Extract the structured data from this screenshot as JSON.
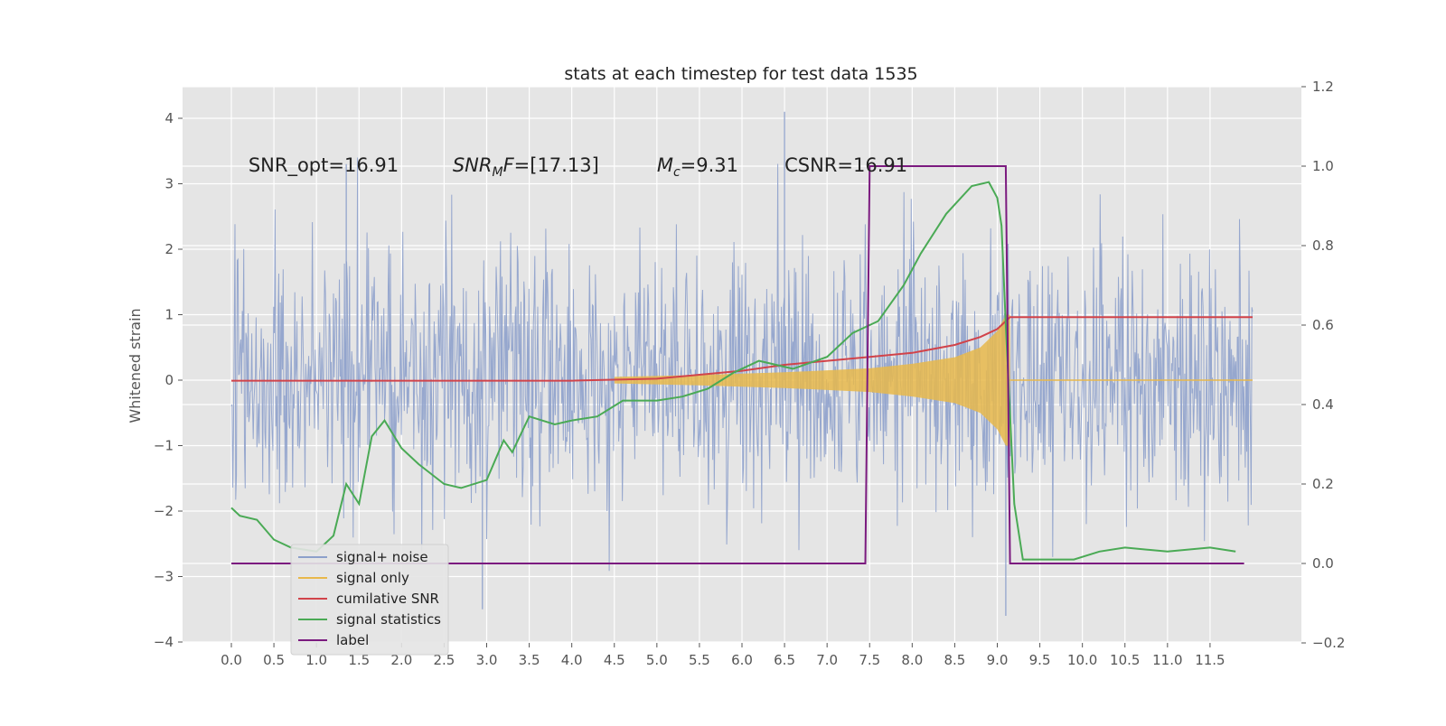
{
  "chart_data": {
    "type": "line",
    "title": "stats at each timestep for test data 1535",
    "ylabel": "Whitened strain",
    "xlabel": "",
    "xlim": [
      -0.5,
      12.4
    ],
    "ylim": [
      -4,
      4.4
    ],
    "y2lim": [
      -0.2,
      1.2
    ],
    "grid": true,
    "legend_position": "lower-left",
    "x_ticks": [
      "0.0",
      "0.5",
      "1.0",
      "1.5",
      "2.0",
      "2.5",
      "3.0",
      "3.5",
      "4.0",
      "4.5",
      "5.0",
      "5.5",
      "6.0",
      "6.5",
      "7.0",
      "7.5",
      "8.0",
      "8.5",
      "9.0",
      "9.5",
      "10.0",
      "10.5",
      "11.0",
      "11.5"
    ],
    "y_ticks": [
      "−4",
      "−3",
      "−2",
      "−1",
      "0",
      "1",
      "2",
      "3",
      "4"
    ],
    "y2_ticks": [
      "−0.2",
      "0.0",
      "0.2",
      "0.4",
      "0.6",
      "0.8",
      "1.0",
      "1.2"
    ],
    "annotations": [
      {
        "text": "SNR_opt=16.91",
        "x": 0.2,
        "y": 3.3
      },
      {
        "text": "SNR_MF=[17.13]",
        "x": 2.6,
        "y": 3.3
      },
      {
        "text": "M_c=9.31",
        "x": 5.0,
        "y": 3.3
      },
      {
        "text": "CSNR=16.91",
        "x": 6.5,
        "y": 3.3
      }
    ],
    "series": [
      {
        "name": "signal+ noise",
        "color": "#8da0cb",
        "axis": "left",
        "kind": "noise",
        "t_range": [
          0,
          12.0
        ],
        "amplitude_rms": 1.0,
        "envelope_approx": [
          -2.6,
          2.6
        ],
        "peak_max": 4.1,
        "peak_min": -3.6
      },
      {
        "name": "signal only",
        "color": "#e8b84b",
        "axis": "left",
        "kind": "chirp",
        "start": 4.5,
        "merger": 9.15,
        "peak": 1.0,
        "envelope": {
          "x": [
            4.5,
            5.5,
            6.5,
            7.5,
            8.0,
            8.5,
            8.8,
            9.0,
            9.1,
            9.15
          ],
          "amp": [
            0.05,
            0.08,
            0.12,
            0.18,
            0.25,
            0.35,
            0.5,
            0.75,
            1.0,
            1.0
          ]
        }
      },
      {
        "name": "cumilative SNR",
        "color": "#d1434a",
        "axis": "right",
        "x": [
          0,
          1,
          2,
          3,
          4,
          5,
          5.5,
          6,
          6.5,
          7,
          7.5,
          8,
          8.5,
          8.8,
          9.0,
          9.1,
          9.15,
          10,
          11,
          12
        ],
        "values": [
          0.46,
          0.46,
          0.46,
          0.46,
          0.46,
          0.465,
          0.475,
          0.485,
          0.5,
          0.51,
          0.52,
          0.53,
          0.55,
          0.57,
          0.59,
          0.61,
          0.62,
          0.62,
          0.62,
          0.62
        ]
      },
      {
        "name": "signal statistics",
        "color": "#4aaa55",
        "axis": "right",
        "x": [
          0.0,
          0.1,
          0.3,
          0.5,
          0.7,
          1.0,
          1.2,
          1.35,
          1.5,
          1.65,
          1.8,
          2.0,
          2.2,
          2.5,
          2.7,
          3.0,
          3.2,
          3.3,
          3.5,
          3.8,
          4.0,
          4.3,
          4.6,
          5.0,
          5.3,
          5.6,
          5.9,
          6.2,
          6.6,
          7.0,
          7.3,
          7.6,
          7.9,
          8.1,
          8.4,
          8.7,
          8.9,
          9.0,
          9.05,
          9.1,
          9.2,
          9.3,
          9.6,
          9.9,
          10.2,
          10.5,
          11.0,
          11.5,
          11.8
        ],
        "values": [
          0.14,
          0.12,
          0.11,
          0.06,
          0.04,
          0.03,
          0.07,
          0.2,
          0.15,
          0.32,
          0.36,
          0.29,
          0.25,
          0.2,
          0.19,
          0.21,
          0.31,
          0.28,
          0.37,
          0.35,
          0.36,
          0.37,
          0.41,
          0.41,
          0.42,
          0.44,
          0.48,
          0.51,
          0.49,
          0.52,
          0.58,
          0.61,
          0.7,
          0.78,
          0.88,
          0.95,
          0.96,
          0.92,
          0.85,
          0.6,
          0.15,
          0.01,
          0.01,
          0.01,
          0.03,
          0.04,
          0.03,
          0.04,
          0.03
        ]
      },
      {
        "name": "label",
        "color": "#7b1a7f",
        "axis": "right",
        "x": [
          0,
          7.45,
          7.5,
          9.1,
          9.15,
          11.9
        ],
        "values": [
          0,
          0,
          1,
          1,
          0,
          0
        ]
      }
    ]
  }
}
